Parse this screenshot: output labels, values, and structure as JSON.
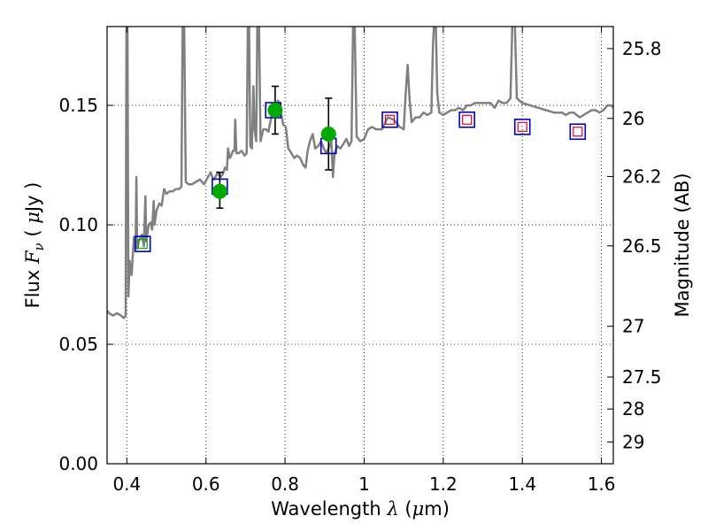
{
  "chart_data": {
    "type": "scatter",
    "title": "",
    "xlabel": {
      "prefix": "Wavelength",
      "symbol": "λ",
      "unit_open": "(",
      "unit_mu": "μ",
      "unit_rest": "m)"
    },
    "ylabel": {
      "prefix": "Flux",
      "symbol": "F",
      "sub": "ν",
      "unit_open": "(",
      "unit_mu": "μ",
      "unit_rest": "Jy )"
    },
    "y2label": "Magnitude (AB)",
    "xlim": [
      0.35,
      1.63
    ],
    "ylim": [
      0.0,
      0.183
    ],
    "x_ticks": [
      0.4,
      0.6,
      0.8,
      1.0,
      1.2,
      1.4,
      1.6
    ],
    "x_tick_labels": [
      "0.4",
      "0.6",
      "0.8",
      "1",
      "1.2",
      "1.4",
      "1.6"
    ],
    "y_ticks": [
      0.0,
      0.05,
      0.1,
      0.15
    ],
    "y_tick_labels": [
      "0.00",
      "0.05",
      "0.10",
      "0.15"
    ],
    "mag_ticks": [
      25.8,
      26,
      26.2,
      26.5,
      27,
      27.5,
      28,
      29
    ],
    "mag_tick_labels": [
      "25.8",
      "26",
      "26.2",
      "26.5",
      "27",
      "27.5",
      "28",
      "29"
    ],
    "grid": true,
    "colors": {
      "spectrum": "#808080",
      "observed": "#00aa00",
      "model_blue": "#0000cc",
      "model_red": "#dd0033",
      "model_green": "#00aa00",
      "errorbar": "#000000"
    },
    "spectrum": [
      [
        0.35,
        0.064
      ],
      [
        0.355,
        0.063
      ],
      [
        0.365,
        0.062
      ],
      [
        0.375,
        0.063
      ],
      [
        0.385,
        0.062
      ],
      [
        0.392,
        0.061
      ],
      [
        0.397,
        0.062
      ],
      [
        0.399,
        0.185
      ],
      [
        0.4015,
        0.185
      ],
      [
        0.404,
        0.07
      ],
      [
        0.407,
        0.085
      ],
      [
        0.412,
        0.079
      ],
      [
        0.418,
        0.095
      ],
      [
        0.422,
        0.09
      ],
      [
        0.424,
        0.12
      ],
      [
        0.426,
        0.09
      ],
      [
        0.43,
        0.093
      ],
      [
        0.438,
        0.096
      ],
      [
        0.443,
        0.091
      ],
      [
        0.447,
        0.112
      ],
      [
        0.449,
        0.093
      ],
      [
        0.455,
        0.1
      ],
      [
        0.46,
        0.101
      ],
      [
        0.464,
        0.098
      ],
      [
        0.468,
        0.11
      ],
      [
        0.47,
        0.1
      ],
      [
        0.475,
        0.106
      ],
      [
        0.482,
        0.109
      ],
      [
        0.488,
        0.108
      ],
      [
        0.494,
        0.115
      ],
      [
        0.5,
        0.113
      ],
      [
        0.508,
        0.114
      ],
      [
        0.516,
        0.114
      ],
      [
        0.524,
        0.115
      ],
      [
        0.532,
        0.115
      ],
      [
        0.538,
        0.116
      ],
      [
        0.541,
        0.185
      ],
      [
        0.545,
        0.185
      ],
      [
        0.549,
        0.118
      ],
      [
        0.556,
        0.117
      ],
      [
        0.565,
        0.117
      ],
      [
        0.575,
        0.118
      ],
      [
        0.585,
        0.119
      ],
      [
        0.595,
        0.117
      ],
      [
        0.605,
        0.12
      ],
      [
        0.612,
        0.122
      ],
      [
        0.618,
        0.119
      ],
      [
        0.624,
        0.12
      ],
      [
        0.63,
        0.122
      ],
      [
        0.636,
        0.12
      ],
      [
        0.642,
        0.121
      ],
      [
        0.648,
        0.124
      ],
      [
        0.653,
        0.123
      ],
      [
        0.656,
        0.132
      ],
      [
        0.66,
        0.128
      ],
      [
        0.664,
        0.129
      ],
      [
        0.668,
        0.131
      ],
      [
        0.672,
        0.131
      ],
      [
        0.674,
        0.144
      ],
      [
        0.677,
        0.13
      ],
      [
        0.683,
        0.13
      ],
      [
        0.69,
        0.131
      ],
      [
        0.698,
        0.129
      ],
      [
        0.703,
        0.13
      ],
      [
        0.706,
        0.185
      ],
      [
        0.709,
        0.185
      ],
      [
        0.712,
        0.133
      ],
      [
        0.716,
        0.132
      ],
      [
        0.72,
        0.158
      ],
      [
        0.723,
        0.14
      ],
      [
        0.727,
        0.135
      ],
      [
        0.73,
        0.185
      ],
      [
        0.734,
        0.185
      ],
      [
        0.738,
        0.135
      ],
      [
        0.745,
        0.14
      ],
      [
        0.752,
        0.14
      ],
      [
        0.758,
        0.139
      ],
      [
        0.765,
        0.145
      ],
      [
        0.771,
        0.148
      ],
      [
        0.777,
        0.149
      ],
      [
        0.782,
        0.152
      ],
      [
        0.788,
        0.149
      ],
      [
        0.795,
        0.142
      ],
      [
        0.802,
        0.141
      ],
      [
        0.808,
        0.132
      ],
      [
        0.816,
        0.13
      ],
      [
        0.823,
        0.128
      ],
      [
        0.83,
        0.129
      ],
      [
        0.838,
        0.128
      ],
      [
        0.846,
        0.125
      ],
      [
        0.852,
        0.124
      ],
      [
        0.857,
        0.131
      ],
      [
        0.863,
        0.135
      ],
      [
        0.87,
        0.138
      ],
      [
        0.876,
        0.132
      ],
      [
        0.884,
        0.133
      ],
      [
        0.891,
        0.135
      ],
      [
        0.898,
        0.132
      ],
      [
        0.904,
        0.13
      ],
      [
        0.91,
        0.132
      ],
      [
        0.917,
        0.135
      ],
      [
        0.921,
        0.12
      ],
      [
        0.925,
        0.13
      ],
      [
        0.932,
        0.133
      ],
      [
        0.94,
        0.132
      ],
      [
        0.948,
        0.134
      ],
      [
        0.955,
        0.136
      ],
      [
        0.962,
        0.133
      ],
      [
        0.968,
        0.135
      ],
      [
        0.972,
        0.185
      ],
      [
        0.976,
        0.185
      ],
      [
        0.981,
        0.137
      ],
      [
        0.99,
        0.135
      ],
      [
        1.0,
        0.136
      ],
      [
        1.01,
        0.14
      ],
      [
        1.02,
        0.141
      ],
      [
        1.03,
        0.14
      ],
      [
        1.045,
        0.14
      ],
      [
        1.06,
        0.145
      ],
      [
        1.075,
        0.144
      ],
      [
        1.09,
        0.141
      ],
      [
        1.1,
        0.14
      ],
      [
        1.105,
        0.155
      ],
      [
        1.11,
        0.167
      ],
      [
        1.115,
        0.152
      ],
      [
        1.12,
        0.143
      ],
      [
        1.13,
        0.145
      ],
      [
        1.14,
        0.145
      ],
      [
        1.15,
        0.147
      ],
      [
        1.16,
        0.146
      ],
      [
        1.17,
        0.147
      ],
      [
        1.174,
        0.175
      ],
      [
        1.177,
        0.185
      ],
      [
        1.181,
        0.185
      ],
      [
        1.185,
        0.155
      ],
      [
        1.19,
        0.147
      ],
      [
        1.2,
        0.146
      ],
      [
        1.21,
        0.147
      ],
      [
        1.22,
        0.148
      ],
      [
        1.23,
        0.148
      ],
      [
        1.24,
        0.149
      ],
      [
        1.25,
        0.148
      ],
      [
        1.26,
        0.15
      ],
      [
        1.27,
        0.15
      ],
      [
        1.28,
        0.151
      ],
      [
        1.3,
        0.151
      ],
      [
        1.32,
        0.151
      ],
      [
        1.33,
        0.149
      ],
      [
        1.34,
        0.152
      ],
      [
        1.35,
        0.151
      ],
      [
        1.36,
        0.151
      ],
      [
        1.37,
        0.153
      ],
      [
        1.375,
        0.185
      ],
      [
        1.381,
        0.185
      ],
      [
        1.386,
        0.153
      ],
      [
        1.4,
        0.151
      ],
      [
        1.42,
        0.15
      ],
      [
        1.44,
        0.149
      ],
      [
        1.46,
        0.148
      ],
      [
        1.48,
        0.147
      ],
      [
        1.5,
        0.147
      ],
      [
        1.51,
        0.146
      ],
      [
        1.52,
        0.147
      ],
      [
        1.53,
        0.147
      ],
      [
        1.545,
        0.145
      ],
      [
        1.555,
        0.146
      ],
      [
        1.565,
        0.147
      ],
      [
        1.575,
        0.148
      ],
      [
        1.585,
        0.148
      ],
      [
        1.595,
        0.147
      ],
      [
        1.605,
        0.148
      ],
      [
        1.615,
        0.15
      ],
      [
        1.625,
        0.15
      ],
      [
        1.63,
        0.149
      ]
    ],
    "model_photometry": [
      {
        "x": 0.44,
        "y": 0.092,
        "fill": "green"
      },
      {
        "x": 0.635,
        "y": 0.116,
        "fill": "none"
      },
      {
        "x": 0.77,
        "y": 0.148,
        "fill": "none"
      },
      {
        "x": 0.91,
        "y": 0.133,
        "fill": "none"
      },
      {
        "x": 1.065,
        "y": 0.144,
        "fill": "red"
      },
      {
        "x": 1.26,
        "y": 0.144,
        "fill": "red"
      },
      {
        "x": 1.4,
        "y": 0.141,
        "fill": "red"
      },
      {
        "x": 1.54,
        "y": 0.139,
        "fill": "red"
      }
    ],
    "observed_photometry": [
      {
        "x": 0.635,
        "y": 0.114,
        "yerr_low": 0.007,
        "yerr_high": 0.008
      },
      {
        "x": 0.775,
        "y": 0.148,
        "yerr_low": 0.01,
        "yerr_high": 0.01
      },
      {
        "x": 0.91,
        "y": 0.138,
        "yerr_low": 0.015,
        "yerr_high": 0.015
      }
    ]
  }
}
